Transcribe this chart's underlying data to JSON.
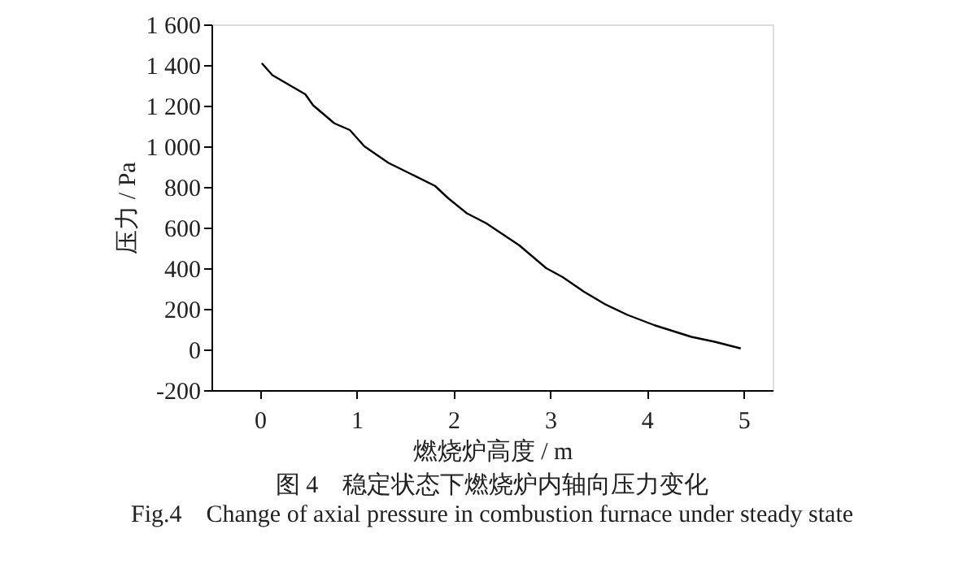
{
  "chart_data": {
    "type": "line",
    "xlabel": "燃烧炉高度 / m",
    "ylabel": "压力 / Pa",
    "x": [
      0.02,
      0.13,
      0.47,
      0.55,
      0.77,
      0.93,
      1.08,
      1.33,
      1.56,
      1.81,
      1.95,
      2.14,
      2.34,
      2.68,
      2.96,
      3.13,
      3.35,
      3.57,
      3.8,
      4.08,
      4.46,
      4.7,
      4.97
    ],
    "series": [
      {
        "color": "#000000",
        "values": [
          1409,
          1350,
          1256,
          1202,
          1113,
          1080,
          1000,
          918,
          864,
          805,
          743,
          670,
          621,
          513,
          400,
          356,
          284,
          222,
          170,
          119,
          62,
          38,
          5
        ]
      }
    ],
    "xlim": [
      -0.5,
      5.3
    ],
    "xticks": [
      0,
      1,
      2,
      3,
      4,
      5
    ],
    "ylim": [
      -200,
      1600
    ],
    "yticks": [
      -200,
      0,
      200,
      400,
      600,
      800,
      {
        "value": 1000,
        "label": "1 000"
      },
      {
        "value": 1200,
        "label": "1 200"
      },
      {
        "value": 1400,
        "label": "1 400"
      },
      {
        "value": 1600,
        "label": "1 600"
      }
    ],
    "grid": false,
    "legend": false,
    "marker": "none",
    "line_style": "solid",
    "annotations": [
      "图 4　稳定状态下燃烧炉内轴向压力变化",
      "Fig.4　Change of axial pressure in combustion furnace under steady state"
    ]
  }
}
